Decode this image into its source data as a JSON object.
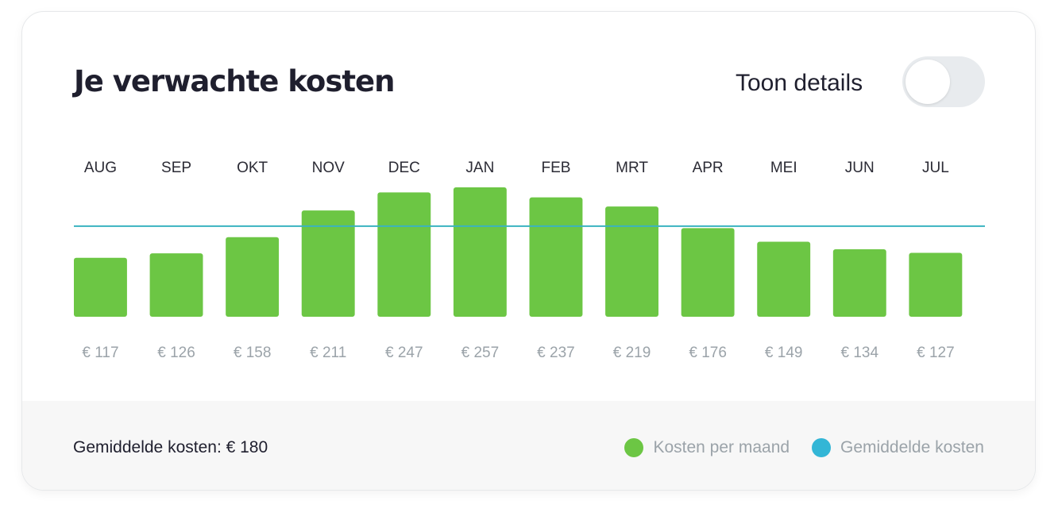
{
  "header": {
    "title": "Je verwachte kosten",
    "toggle_label": "Toon details",
    "toggle_on": false
  },
  "colors": {
    "bar": "#6cc644",
    "average_line": "#3ab3c0",
    "legend_average_dot": "#33b6d6"
  },
  "chart_data": {
    "type": "bar",
    "categories": [
      "AUG",
      "SEP",
      "OKT",
      "NOV",
      "DEC",
      "JAN",
      "FEB",
      "MRT",
      "APR",
      "MEI",
      "JUN",
      "JUL"
    ],
    "values": [
      117,
      126,
      158,
      211,
      247,
      257,
      237,
      219,
      176,
      149,
      134,
      127
    ],
    "value_labels": [
      "€ 117",
      "€ 126",
      "€ 158",
      "€ 211",
      "€ 247",
      "€ 257",
      "€ 237",
      "€ 219",
      "€ 176",
      "€ 149",
      "€ 134",
      "€ 127"
    ],
    "average": 180,
    "series": [
      {
        "name": "Kosten per maand",
        "values": [
          117,
          126,
          158,
          211,
          247,
          257,
          237,
          219,
          176,
          149,
          134,
          127
        ]
      }
    ],
    "title": "Je verwachte kosten",
    "xlabel": "",
    "ylabel": "",
    "ylim": [
      0,
      257
    ],
    "grid": false,
    "legend_position": "bottom-right"
  },
  "footer": {
    "average_text": "Gemiddelde kosten: € 180",
    "legend": [
      {
        "label": "Kosten per maand"
      },
      {
        "label": "Gemiddelde kosten"
      }
    ]
  }
}
